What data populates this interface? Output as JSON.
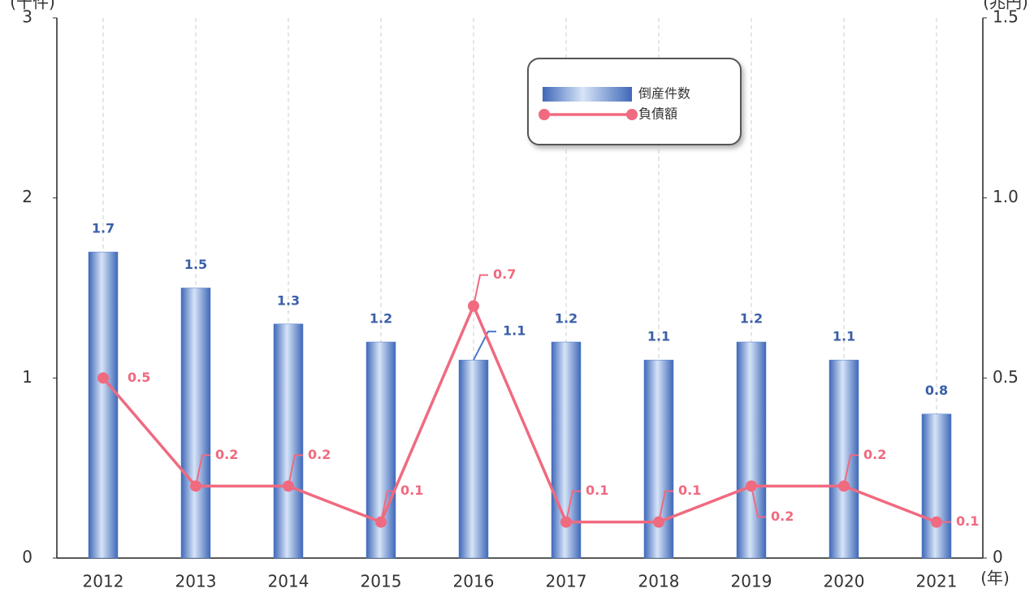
{
  "chart_data": {
    "type": "bar_line",
    "categories": [
      "2012",
      "2013",
      "2014",
      "2015",
      "2016",
      "2017",
      "2018",
      "2019",
      "2020",
      "2021"
    ],
    "series": [
      {
        "name": "倒産件数",
        "type": "bar",
        "color": "#4a78c8",
        "axis": "y",
        "values": [
          1.7,
          1.5,
          1.3,
          1.2,
          1.1,
          1.2,
          1.1,
          1.2,
          1.1,
          0.8
        ]
      },
      {
        "name": "負債額",
        "type": "line",
        "color": "#f06a80",
        "axis": "y2",
        "values": [
          0.5,
          0.2,
          0.2,
          0.1,
          0.7,
          0.1,
          0.1,
          0.2,
          0.2,
          0.1
        ]
      }
    ],
    "ylabel": "(千件)",
    "y2label": "(兆円)",
    "xlabel": "(年)",
    "ylim": [
      0,
      3
    ],
    "yticks": [
      0,
      1,
      2,
      3
    ],
    "y2lim": [
      0,
      1.5
    ],
    "y2ticks": [
      0,
      0.5,
      {
        "value": 1,
        "label": "1.0"
      },
      1.5
    ],
    "grid": true,
    "legend": "top"
  }
}
